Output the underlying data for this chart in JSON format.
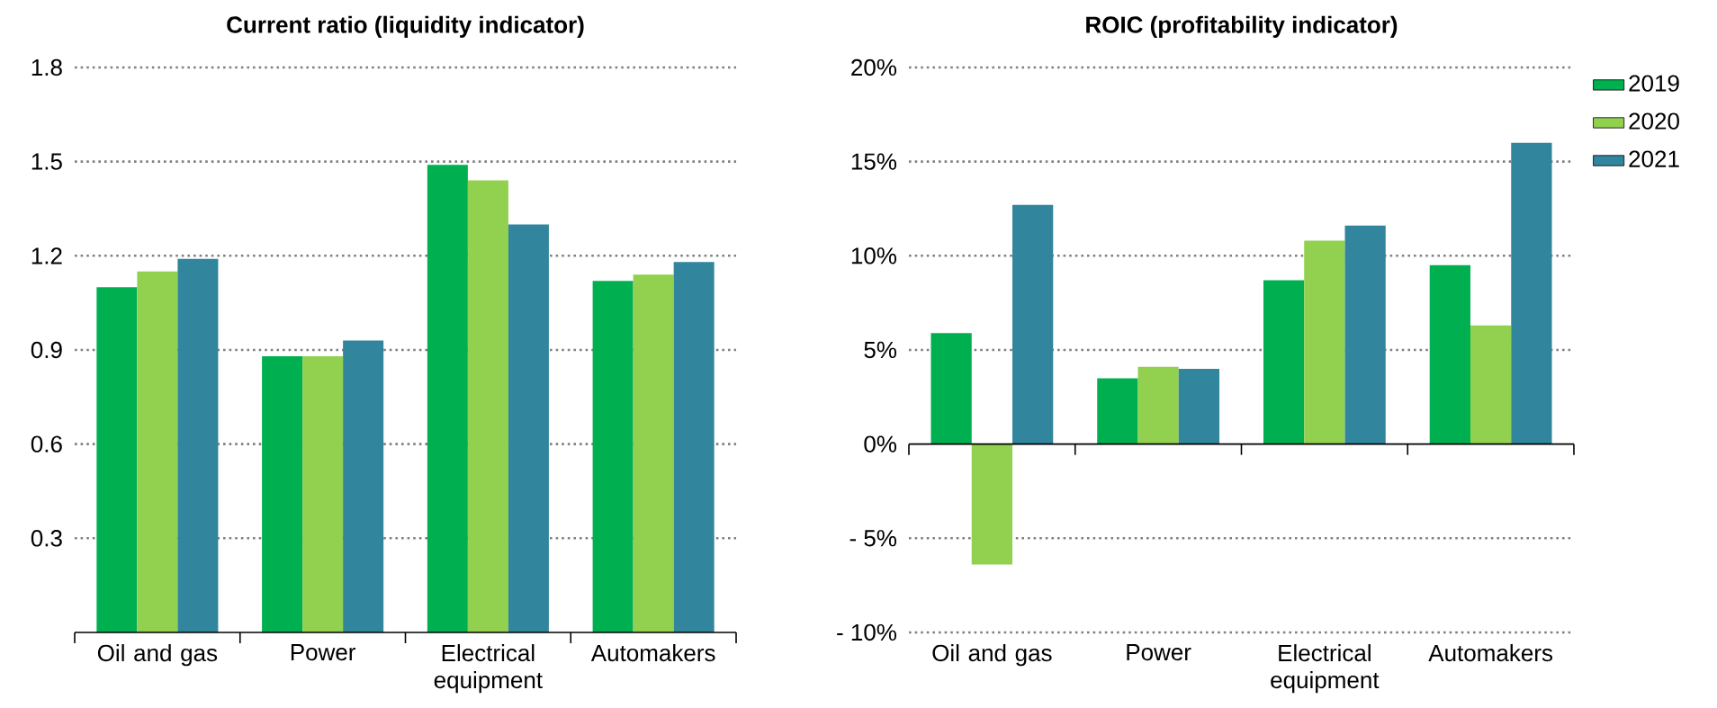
{
  "chart_data": [
    {
      "type": "bar",
      "title": "Current ratio (liquidity indicator)",
      "categories": [
        "Oil and gas",
        "Power",
        "Electrical equipment",
        "Automakers"
      ],
      "series": [
        {
          "color": "#00b050",
          "values": [
            1.1,
            0.88,
            1.49,
            1.12
          ]
        },
        {
          "color": "#92d050",
          "values": [
            1.15,
            0.88,
            1.44,
            1.14
          ]
        },
        {
          "color": "#31859c",
          "values": [
            1.19,
            0.93,
            1.3,
            1.18
          ]
        }
      ],
      "ylim": [
        0,
        1.8
      ],
      "yticks": [
        0.3,
        0.6,
        0.9,
        1.2,
        1.5,
        1.8
      ],
      "grid": "y"
    },
    {
      "type": "bar",
      "title": "ROIC (profitability indicator)",
      "categories": [
        "Oil and gas",
        "Power",
        "Electrical equipment",
        "Automakers"
      ],
      "series": [
        {
          "name": "2019",
          "color": "#00b050",
          "values": [
            5.9,
            3.5,
            8.7,
            9.5
          ]
        },
        {
          "name": "2020",
          "color": "#92d050",
          "values": [
            -6.4,
            4.1,
            10.8,
            6.3
          ]
        },
        {
          "name": "2021",
          "color": "#31859c",
          "values": [
            12.7,
            4.0,
            11.6,
            16.0
          ]
        }
      ],
      "ylim": [
        -10,
        20
      ],
      "yticks": [
        {
          "value": -10,
          "label": "- 10%"
        },
        {
          "value": -5,
          "label": "- 5%"
        },
        {
          "value": 0,
          "label": "0%"
        },
        {
          "value": 5,
          "label": "5%"
        },
        {
          "value": 10,
          "label": "10%"
        },
        {
          "value": 15,
          "label": "15%"
        },
        {
          "value": 20,
          "label": "20%"
        }
      ],
      "grid": "y",
      "legend": "right"
    }
  ]
}
